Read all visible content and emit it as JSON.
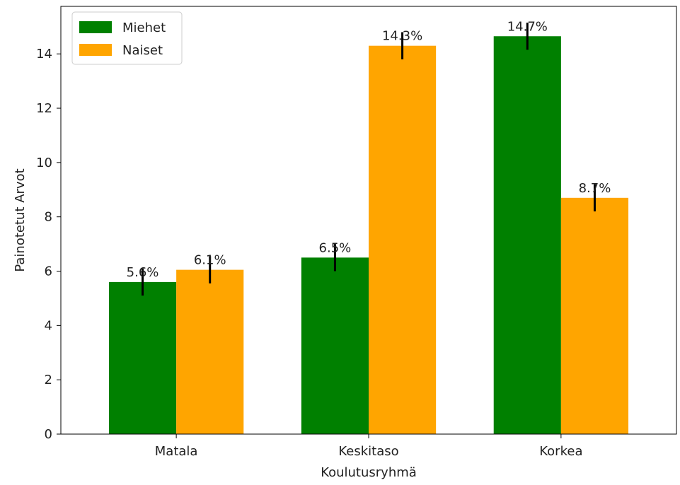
{
  "chart_data": {
    "type": "bar",
    "categories": [
      "Matala",
      "Keskitaso",
      "Korkea"
    ],
    "series": [
      {
        "name": "Miehet",
        "color": "#008000",
        "values": [
          5.6,
          6.5,
          14.65
        ],
        "errors": [
          0.5,
          0.5,
          0.5
        ],
        "labels": [
          "5.6%",
          "6.5%",
          "14.7%"
        ]
      },
      {
        "name": "Naiset",
        "color": "#FFA500",
        "values": [
          6.05,
          14.3,
          8.7
        ],
        "errors": [
          0.5,
          0.5,
          0.5
        ],
        "labels": [
          "6.1%",
          "14.3%",
          "8.7%"
        ]
      }
    ],
    "xlabel": "Koulutusryhmä",
    "ylabel": "Painotetut Arvot",
    "ylim": [
      0,
      15.75
    ],
    "yticks": [
      0,
      2,
      4,
      6,
      8,
      10,
      12,
      14
    ],
    "grid": false,
    "legend_position": "top-left"
  }
}
